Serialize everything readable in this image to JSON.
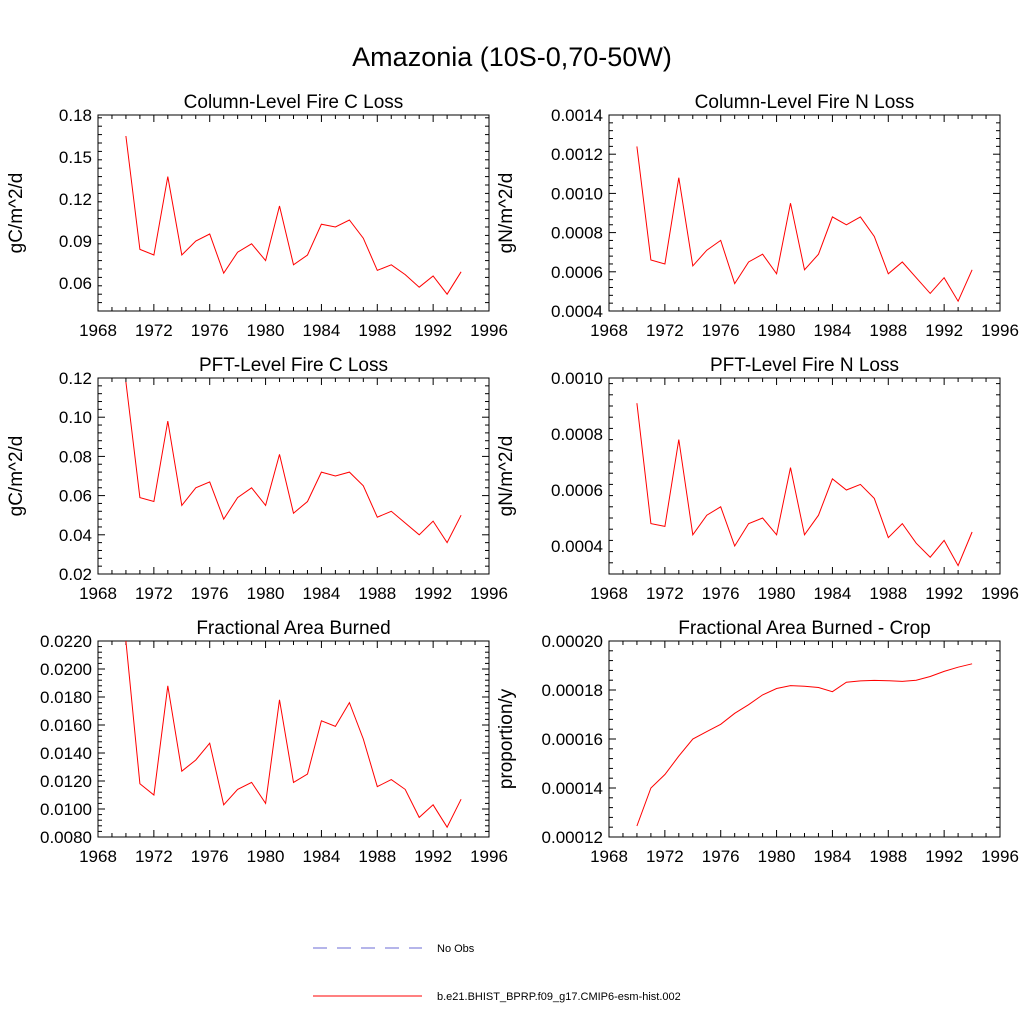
{
  "figure": {
    "title": "Amazonia (10S-0,70-50W)"
  },
  "legend": [
    {
      "label": "No Obs",
      "color": "#6b6bd6",
      "style": "dashed"
    },
    {
      "label": "b.e21.BHIST_BPRP.f09_g17.CMIP6-esm-hist.002",
      "color": "#ff0000",
      "style": "solid"
    }
  ],
  "chart_data": [
    {
      "type": "line",
      "title": "Column-Level Fire C Loss",
      "xlabel": "",
      "ylabel": "gC/m^2/d",
      "xlim": [
        1968,
        1996
      ],
      "ylim": [
        0.04,
        0.18
      ],
      "xticks": [
        "1968",
        "1972",
        "1976",
        "1980",
        "1984",
        "1988",
        "1992",
        "1996"
      ],
      "yticks": [
        "0.06",
        "0.09",
        "0.12",
        "0.15",
        "0.18"
      ],
      "series": [
        {
          "name": "b.e21.BHIST_BPRP.f09_g17.CMIP6-esm-hist.002",
          "color": "#ff0000",
          "x": [
            1970,
            1971,
            1972,
            1973,
            1974,
            1975,
            1976,
            1977,
            1978,
            1979,
            1980,
            1981,
            1982,
            1983,
            1984,
            1985,
            1986,
            1987,
            1988,
            1989,
            1990,
            1991,
            1992,
            1993,
            1994
          ],
          "values": [
            0.165,
            0.084,
            0.08,
            0.136,
            0.08,
            0.09,
            0.095,
            0.067,
            0.082,
            0.088,
            0.076,
            0.115,
            0.073,
            0.08,
            0.102,
            0.1,
            0.105,
            0.092,
            0.069,
            0.073,
            0.066,
            0.057,
            0.065,
            0.052,
            0.068
          ]
        }
      ]
    },
    {
      "type": "line",
      "title": "Column-Level Fire N Loss",
      "xlabel": "",
      "ylabel": "gN/m^2/d",
      "xlim": [
        1968,
        1996
      ],
      "ylim": [
        0.0004,
        0.0014
      ],
      "xticks": [
        "1968",
        "1972",
        "1976",
        "1980",
        "1984",
        "1988",
        "1992",
        "1996"
      ],
      "yticks": [
        "0.0004",
        "0.0006",
        "0.0008",
        "0.0010",
        "0.0012",
        "0.0014"
      ],
      "series": [
        {
          "name": "b.e21.BHIST_BPRP.f09_g17.CMIP6-esm-hist.002",
          "color": "#ff0000",
          "x": [
            1970,
            1971,
            1972,
            1973,
            1974,
            1975,
            1976,
            1977,
            1978,
            1979,
            1980,
            1981,
            1982,
            1983,
            1984,
            1985,
            1986,
            1987,
            1988,
            1989,
            1990,
            1991,
            1992,
            1993,
            1994
          ],
          "values": [
            0.00124,
            0.00066,
            0.00064,
            0.00108,
            0.00063,
            0.00071,
            0.00076,
            0.00054,
            0.00065,
            0.00069,
            0.00059,
            0.00095,
            0.00061,
            0.00069,
            0.00088,
            0.00084,
            0.00088,
            0.00078,
            0.00059,
            0.00065,
            0.00057,
            0.00049,
            0.00057,
            0.00045,
            0.00061
          ]
        }
      ]
    },
    {
      "type": "line",
      "title": "PFT-Level Fire C Loss",
      "xlabel": "",
      "ylabel": "gC/m^2/d",
      "xlim": [
        1968,
        1996
      ],
      "ylim": [
        0.02,
        0.12
      ],
      "xticks": [
        "1968",
        "1972",
        "1976",
        "1980",
        "1984",
        "1988",
        "1992",
        "1996"
      ],
      "yticks": [
        "0.02",
        "0.04",
        "0.06",
        "0.08",
        "0.10",
        "0.12"
      ],
      "series": [
        {
          "name": "b.e21.BHIST_BPRP.f09_g17.CMIP6-esm-hist.002",
          "color": "#ff0000",
          "x": [
            1970,
            1971,
            1972,
            1973,
            1974,
            1975,
            1976,
            1977,
            1978,
            1979,
            1980,
            1981,
            1982,
            1983,
            1984,
            1985,
            1986,
            1987,
            1988,
            1989,
            1990,
            1991,
            1992,
            1993,
            1994
          ],
          "values": [
            0.118,
            0.059,
            0.057,
            0.098,
            0.055,
            0.064,
            0.067,
            0.048,
            0.059,
            0.064,
            0.055,
            0.081,
            0.051,
            0.057,
            0.072,
            0.07,
            0.072,
            0.065,
            0.049,
            0.052,
            0.046,
            0.04,
            0.047,
            0.036,
            0.05
          ]
        }
      ]
    },
    {
      "type": "line",
      "title": "PFT-Level Fire N Loss",
      "xlabel": "",
      "ylabel": "gN/m^2/d",
      "xlim": [
        1968,
        1996
      ],
      "ylim": [
        0.0003,
        0.001
      ],
      "xticks": [
        "1968",
        "1972",
        "1976",
        "1980",
        "1984",
        "1988",
        "1992",
        "1996"
      ],
      "yticks": [
        "0.0004",
        "0.0006",
        "0.0008",
        "0.0010"
      ],
      "series": [
        {
          "name": "b.e21.BHIST_BPRP.f09_g17.CMIP6-esm-hist.002",
          "color": "#ff0000",
          "x": [
            1970,
            1971,
            1972,
            1973,
            1974,
            1975,
            1976,
            1977,
            1978,
            1979,
            1980,
            1981,
            1982,
            1983,
            1984,
            1985,
            1986,
            1987,
            1988,
            1989,
            1990,
            1991,
            1992,
            1993,
            1994
          ],
          "values": [
            0.00091,
            0.00048,
            0.00047,
            0.00078,
            0.00044,
            0.00051,
            0.00054,
            0.0004,
            0.00048,
            0.0005,
            0.00044,
            0.00068,
            0.00044,
            0.00051,
            0.00064,
            0.0006,
            0.00062,
            0.00057,
            0.00043,
            0.00048,
            0.00041,
            0.00036,
            0.00042,
            0.00033,
            0.00045
          ]
        }
      ]
    },
    {
      "type": "line",
      "title": "Fractional Area Burned",
      "xlabel": "",
      "ylabel": "",
      "xlim": [
        1968,
        1996
      ],
      "ylim": [
        0.008,
        0.022
      ],
      "xticks": [
        "1968",
        "1972",
        "1976",
        "1980",
        "1984",
        "1988",
        "1992",
        "1996"
      ],
      "yticks": [
        "0.0080",
        "0.0100",
        "0.0120",
        "0.0140",
        "0.0160",
        "0.0180",
        "0.0200",
        "0.0220"
      ],
      "series": [
        {
          "name": "b.e21.BHIST_BPRP.f09_g17.CMIP6-esm-hist.002",
          "color": "#ff0000",
          "x": [
            1970,
            1971,
            1972,
            1973,
            1974,
            1975,
            1976,
            1977,
            1978,
            1979,
            1980,
            1981,
            1982,
            1983,
            1984,
            1985,
            1986,
            1987,
            1988,
            1989,
            1990,
            1991,
            1992,
            1993,
            1994
          ],
          "values": [
            0.022,
            0.0118,
            0.011,
            0.0188,
            0.0127,
            0.0135,
            0.0147,
            0.0103,
            0.0114,
            0.0119,
            0.0104,
            0.0178,
            0.0119,
            0.0125,
            0.0163,
            0.0159,
            0.0176,
            0.015,
            0.0116,
            0.0121,
            0.0114,
            0.0094,
            0.0103,
            0.0087,
            0.0107
          ]
        }
      ]
    },
    {
      "type": "line",
      "title": "Fractional Area Burned - Crop",
      "xlabel": "",
      "ylabel": "proportion/y",
      "xlim": [
        1968,
        1996
      ],
      "ylim": [
        0.00012,
        0.0002
      ],
      "xticks": [
        "1968",
        "1972",
        "1976",
        "1980",
        "1984",
        "1988",
        "1992",
        "1996"
      ],
      "yticks": [
        "0.00012",
        "0.00014",
        "0.00016",
        "0.00018",
        "0.00020"
      ],
      "series": [
        {
          "name": "b.e21.BHIST_BPRP.f09_g17.CMIP6-esm-hist.002",
          "color": "#ff0000",
          "x": [
            1970,
            1971,
            1972,
            1973,
            1974,
            1975,
            1976,
            1977,
            1978,
            1979,
            1980,
            1981,
            1982,
            1983,
            1984,
            1985,
            1986,
            1987,
            1988,
            1989,
            1990,
            1991,
            1992,
            1993,
            1994
          ],
          "values": [
            0.0001245,
            0.00014,
            0.0001455,
            0.000153,
            0.00016,
            0.000163,
            0.000166,
            0.0001705,
            0.000174,
            0.000178,
            0.0001806,
            0.0001818,
            0.0001815,
            0.000181,
            0.0001793,
            0.0001832,
            0.0001837,
            0.0001839,
            0.0001838,
            0.0001835,
            0.000184,
            0.0001855,
            0.0001876,
            0.0001893,
            0.0001907
          ]
        }
      ]
    }
  ]
}
